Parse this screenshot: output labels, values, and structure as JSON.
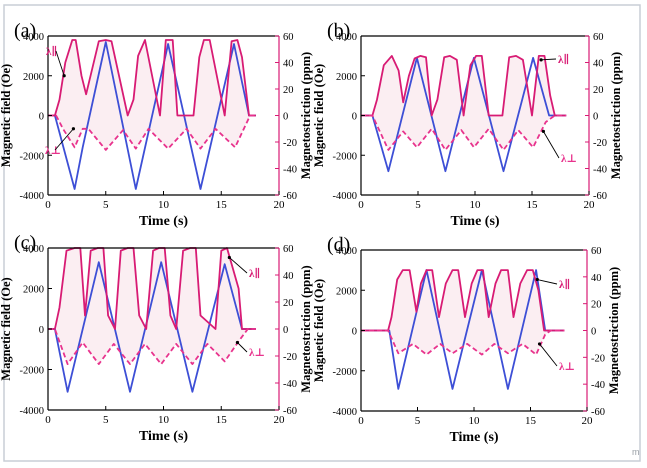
{
  "figure": {
    "colors": {
      "field": "#3d4fd6",
      "par": "#d81b74",
      "perp": "#e8338d",
      "fill": "#fbeef2",
      "axis": "#000000",
      "right_axis": "#d81b74"
    },
    "watermark": "m"
  },
  "chart_data": [
    {
      "type": "line",
      "panel_label": "(a)",
      "xlabel": "Time (s)",
      "ylabel_left": "Magnetic field (Oe)",
      "ylabel_right": "Magnetostriction (ppm)",
      "xlim": [
        0,
        20
      ],
      "ylim_left": [
        -4000,
        4000
      ],
      "ylim_right": [
        -60,
        60
      ],
      "xticks": [
        0,
        5,
        10,
        15,
        20
      ],
      "yticks_left": [
        -4000,
        -2000,
        0,
        2000,
        4000
      ],
      "yticks_right": [
        -60,
        -40,
        -20,
        0,
        20,
        40,
        60
      ],
      "series": [
        {
          "name": "",
          "axis": "left",
          "style": "solid",
          "color": "#3d4fd6",
          "x": [
            0,
            0.6,
            2.3,
            3.0,
            5.0,
            7.6,
            10.4,
            13.2,
            16.1,
            17.4,
            18.0
          ],
          "y": [
            0,
            0,
            -3700,
            -1600,
            3700,
            -3700,
            3600,
            -3700,
            3600,
            0,
            0
          ]
        },
        {
          "name": "λ∥",
          "axis": "right",
          "style": "solid",
          "color": "#d81b74",
          "x": [
            0,
            0.6,
            1.0,
            1.5,
            2.1,
            2.4,
            2.9,
            3.3,
            4.4,
            5.0,
            5.5,
            6.9,
            7.4,
            7.8,
            8.4,
            9.7,
            10.2,
            10.8,
            11.2,
            12.6,
            13.1,
            13.5,
            14.0,
            15.3,
            15.9,
            16.4,
            16.8,
            17.4,
            18.0
          ],
          "y": [
            0,
            0,
            12,
            40,
            57,
            57,
            30,
            16,
            56,
            57,
            56,
            0,
            12,
            45,
            57,
            0,
            57,
            57,
            0,
            0,
            44,
            57,
            57,
            0,
            56,
            57,
            44,
            0,
            0
          ]
        },
        {
          "name": "λ⊥",
          "axis": "right",
          "style": "dashed",
          "color": "#e8338d",
          "x": [
            0,
            0.7,
            1.3,
            2.3,
            3.0,
            3.5,
            5.0,
            6.5,
            7.6,
            8.7,
            10.4,
            12.0,
            13.2,
            14.5,
            16.2,
            17.5,
            18.0
          ],
          "y": [
            0,
            0,
            -10,
            -24,
            -10,
            -10,
            -26,
            -11,
            -25,
            -10,
            -25,
            -10,
            -25,
            -10,
            -24,
            0,
            0
          ]
        }
      ]
    },
    {
      "type": "line",
      "panel_label": "(b)",
      "xlabel": "Time (s)",
      "ylabel_left": "Magnetic field (Oe)",
      "ylabel_right": "Magnetostriction (ppm)",
      "xlim": [
        0,
        20
      ],
      "ylim_left": [
        -4000,
        4000
      ],
      "ylim_right": [
        -60,
        60
      ],
      "xticks": [
        0,
        5,
        10,
        15,
        20
      ],
      "yticks_left": [
        -4000,
        -2000,
        0,
        2000,
        4000
      ],
      "yticks_right": [
        -60,
        -40,
        -20,
        0,
        20,
        40,
        60
      ],
      "series": [
        {
          "name": "",
          "axis": "left",
          "style": "solid",
          "color": "#3d4fd6",
          "x": [
            0,
            1.0,
            2.4,
            4.9,
            7.4,
            9.9,
            12.5,
            15.1,
            16.5,
            17.0,
            18.0
          ],
          "y": [
            0,
            0,
            -2800,
            2900,
            -2800,
            2900,
            -2800,
            2900,
            0,
            0,
            0
          ]
        },
        {
          "name": "λ∥",
          "axis": "right",
          "style": "solid",
          "color": "#d81b74",
          "x": [
            0,
            1.0,
            1.4,
            2.0,
            2.7,
            3.3,
            3.7,
            4.2,
            4.7,
            5.2,
            5.7,
            6.2,
            6.7,
            7.3,
            7.8,
            8.4,
            9.0,
            9.6,
            10.1,
            10.6,
            11.2,
            12.4,
            13.0,
            13.6,
            14.2,
            15.0,
            15.6,
            16.1,
            16.6,
            17.0,
            18.0
          ],
          "y": [
            0,
            0,
            12,
            38,
            45,
            34,
            10,
            30,
            43,
            45,
            44,
            0,
            12,
            44,
            45,
            42,
            0,
            38,
            45,
            45,
            0,
            0,
            44,
            45,
            42,
            0,
            45,
            45,
            15,
            0,
            0
          ]
        },
        {
          "name": "λ⊥",
          "axis": "right",
          "style": "dashed",
          "color": "#e8338d",
          "x": [
            0,
            1.0,
            2.4,
            3.7,
            4.9,
            6.2,
            7.4,
            8.8,
            9.9,
            11.2,
            12.5,
            13.8,
            15.1,
            16.2,
            17.0,
            18.0
          ],
          "y": [
            0,
            0,
            -26,
            -12,
            -24,
            -10,
            -26,
            -11,
            -24,
            -10,
            -26,
            -11,
            -24,
            -5,
            0,
            0
          ]
        }
      ]
    },
    {
      "type": "line",
      "panel_label": "(c)",
      "xlabel": "Time (s)",
      "ylabel_left": "Magnetic field (Oe)",
      "ylabel_right": "Magnetostriction (ppm)",
      "xlim": [
        0,
        20
      ],
      "ylim_left": [
        -4000,
        4000
      ],
      "ylim_right": [
        -60,
        60
      ],
      "xticks": [
        0,
        5,
        10,
        15,
        20
      ],
      "yticks_left": [
        -4000,
        -2000,
        0,
        2000,
        4000
      ],
      "yticks_right": [
        -60,
        -40,
        -20,
        0,
        20,
        40,
        60
      ],
      "series": [
        {
          "name": "",
          "axis": "left",
          "style": "solid",
          "color": "#3d4fd6",
          "x": [
            0,
            0.6,
            1.7,
            4.4,
            7.1,
            9.8,
            12.5,
            15.3,
            16.8,
            17.3,
            18.0
          ],
          "y": [
            0,
            0,
            -3100,
            3300,
            -3100,
            3300,
            -3100,
            3200,
            0,
            0,
            0
          ]
        },
        {
          "name": "λ∥",
          "axis": "right",
          "style": "solid",
          "color": "#d81b74",
          "x": [
            0,
            0.6,
            1.0,
            1.6,
            2.3,
            2.8,
            3.2,
            3.7,
            4.3,
            4.8,
            5.2,
            5.8,
            6.3,
            6.9,
            7.4,
            7.9,
            8.5,
            9.1,
            9.6,
            10.1,
            10.6,
            11.1,
            11.7,
            12.3,
            12.8,
            13.2,
            14.5,
            15.0,
            15.5,
            16.0,
            16.5,
            16.8,
            17.3,
            18.0
          ],
          "y": [
            0,
            0,
            16,
            58,
            60,
            60,
            10,
            58,
            60,
            60,
            10,
            0,
            58,
            60,
            60,
            10,
            0,
            58,
            60,
            60,
            10,
            0,
            58,
            60,
            60,
            10,
            0,
            58,
            60,
            45,
            30,
            0,
            0,
            0
          ]
        },
        {
          "name": "λ⊥",
          "axis": "right",
          "style": "dashed",
          "color": "#e8338d",
          "x": [
            0,
            0.6,
            1.7,
            3.0,
            4.4,
            5.7,
            7.1,
            8.4,
            9.8,
            11.1,
            12.5,
            13.8,
            15.3,
            16.6,
            17.3,
            18.0
          ],
          "y": [
            0,
            0,
            -26,
            -10,
            -26,
            -11,
            -26,
            -11,
            -26,
            -11,
            -26,
            -11,
            -24,
            -8,
            0,
            0
          ]
        }
      ]
    },
    {
      "type": "line",
      "panel_label": "(d)",
      "xlabel": "Time (s)",
      "ylabel_left": "Magnetic field (Oe)",
      "ylabel_right": "Magnetostriction (ppm)",
      "xlim": [
        0,
        20
      ],
      "ylim_left": [
        -4000,
        4000
      ],
      "ylim_right": [
        -60,
        60
      ],
      "xticks": [
        0,
        5,
        10,
        15,
        20
      ],
      "yticks_left": [
        -4000,
        -2000,
        0,
        2000,
        4000
      ],
      "yticks_right": [
        -60,
        -40,
        -20,
        0,
        20,
        40,
        60
      ],
      "series": [
        {
          "name": "",
          "axis": "left",
          "style": "solid",
          "color": "#3d4fd6",
          "x": [
            0,
            2.5,
            3.3,
            5.8,
            8.1,
            10.7,
            13.0,
            15.5,
            16.3,
            16.8,
            18.0
          ],
          "y": [
            0,
            0,
            -2900,
            3000,
            -2900,
            3000,
            -2900,
            3000,
            0,
            0,
            0
          ]
        },
        {
          "name": "λ∥",
          "axis": "right",
          "style": "solid",
          "color": "#d81b74",
          "x": [
            0,
            2.4,
            2.7,
            3.2,
            3.7,
            4.3,
            4.9,
            5.3,
            5.8,
            6.3,
            6.9,
            7.5,
            8.1,
            8.6,
            9.2,
            9.8,
            10.3,
            10.8,
            11.3,
            11.9,
            12.4,
            13.0,
            13.5,
            14.1,
            14.7,
            15.2,
            15.7,
            16.2,
            16.8,
            18.0
          ],
          "y": [
            0,
            0,
            10,
            38,
            45,
            45,
            14,
            35,
            45,
            45,
            10,
            35,
            45,
            45,
            10,
            35,
            45,
            45,
            10,
            35,
            45,
            45,
            10,
            35,
            45,
            45,
            30,
            0,
            0,
            0
          ]
        },
        {
          "name": "λ⊥",
          "axis": "right",
          "style": "dashed",
          "color": "#e8338d",
          "x": [
            0,
            2.4,
            3.3,
            4.6,
            5.8,
            7.0,
            8.1,
            9.4,
            10.7,
            11.8,
            13.0,
            14.3,
            15.5,
            16.3,
            16.8,
            18.0
          ],
          "y": [
            0,
            0,
            -17,
            -10,
            -18,
            -10,
            -17,
            -10,
            -18,
            -10,
            -17,
            -10,
            -18,
            -3,
            0,
            0
          ]
        }
      ]
    }
  ]
}
